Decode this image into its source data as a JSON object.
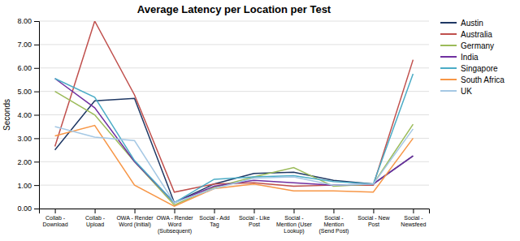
{
  "chart_data": {
    "type": "line",
    "title": "Average Latency per Location per Test",
    "ylabel": "Seconds",
    "categories": [
      "Collab -\nDownload",
      "Collab -\nUpload",
      "OWA - Render\nWord (Initial)",
      "OWA - Render\nWord\n(Subsequent)",
      "Social - Add\nTag",
      "Social - Like\nPost",
      "Social -\nMention (User\nLookup)",
      "Social -\nMention\n(Send Post)",
      "Social - New\nPost",
      "Social -\nNewsfeed"
    ],
    "series": [
      {
        "name": "Austin",
        "color": "#1F3864",
        "values": [
          2.5,
          4.6,
          4.7,
          0.25,
          1.05,
          1.5,
          1.55,
          1.2,
          1.05,
          2.25
        ]
      },
      {
        "name": "Australia",
        "color": "#C0504D",
        "values": [
          2.65,
          8.0,
          4.85,
          0.7,
          1.05,
          1.1,
          0.95,
          1.0,
          1.0,
          6.35
        ]
      },
      {
        "name": "Germany",
        "color": "#9BBB59",
        "values": [
          5.0,
          4.0,
          2.0,
          0.15,
          0.9,
          1.35,
          1.75,
          0.95,
          1.05,
          3.6
        ]
      },
      {
        "name": "India",
        "color": "#7030A0",
        "values": [
          5.55,
          4.3,
          2.0,
          0.25,
          0.95,
          1.2,
          1.1,
          1.0,
          1.05,
          2.25
        ]
      },
      {
        "name": "Singapore",
        "color": "#4BACC6",
        "values": [
          5.55,
          4.75,
          2.05,
          0.25,
          1.25,
          1.35,
          1.4,
          1.15,
          1.05,
          5.75
        ]
      },
      {
        "name": "South Africa",
        "color": "#F79646",
        "values": [
          3.1,
          3.55,
          1.0,
          0.1,
          0.85,
          1.05,
          0.75,
          0.75,
          0.7,
          3.0
        ]
      },
      {
        "name": "UK",
        "color": "#A5C8E4",
        "values": [
          3.5,
          3.05,
          2.9,
          0.25,
          0.85,
          1.3,
          1.35,
          1.0,
          1.05,
          3.4
        ]
      }
    ],
    "ylim": [
      0.0,
      8.0
    ],
    "yticks": [
      {
        "value": 0.0,
        "label": "0.00"
      },
      {
        "value": 1.0,
        "label": "1.00"
      },
      {
        "value": 2.0,
        "label": "2.00"
      },
      {
        "value": 3.0,
        "label": "3.00"
      },
      {
        "value": 4.0,
        "label": "4.00"
      },
      {
        "value": 5.0,
        "label": "5.00"
      },
      {
        "value": 6.0,
        "label": "6.00"
      },
      {
        "value": 7.0,
        "label": "7.00"
      },
      {
        "value": 8.0,
        "label": "8.00"
      }
    ],
    "grid": true,
    "legend": "right"
  }
}
